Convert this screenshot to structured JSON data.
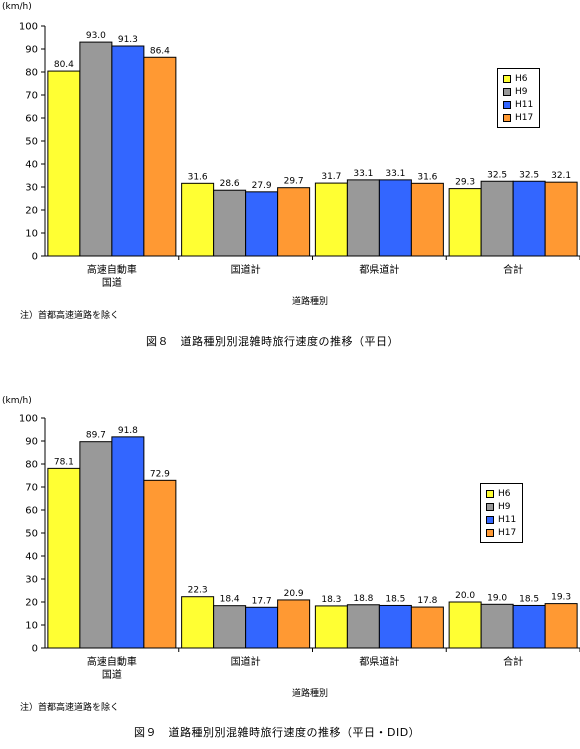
{
  "charts": [
    {
      "id": "fig1",
      "unit": "(km/h)",
      "caption": "図８　道路種別別混雑時旅行速度の推移（平日）",
      "note": "注）首都高速道路を除く",
      "legend": [
        "H6",
        "H9",
        "H11",
        "H17"
      ]
    },
    {
      "id": "fig2",
      "unit": "(km/h)",
      "caption": "図９　道路種別別混雑時旅行速度の推移（平日・DID）",
      "note": "注）首都高速道路を除く",
      "legend": [
        "H6",
        "H9",
        "H11",
        "H17"
      ]
    }
  ],
  "chart_data": [
    {
      "type": "bar",
      "title": "図８　道路種別別混雑時旅行速度の推移（平日）",
      "xlabel": "道路種別",
      "ylabel": "(km/h)",
      "ylim": [
        0,
        100
      ],
      "yticks": [
        0,
        10,
        20,
        30,
        40,
        50,
        60,
        70,
        80,
        90,
        100
      ],
      "categories": [
        "高速自動車\n国道",
        "国道計",
        "都県道計",
        "合計"
      ],
      "series": [
        {
          "name": "H6",
          "color": "#ffff33",
          "values": [
            80.4,
            31.6,
            31.7,
            29.3
          ]
        },
        {
          "name": "H9",
          "color": "#999999",
          "values": [
            93.0,
            28.6,
            33.1,
            32.5
          ]
        },
        {
          "name": "H11",
          "color": "#3366ff",
          "values": [
            91.3,
            27.9,
            33.1,
            32.5
          ]
        },
        {
          "name": "H17",
          "color": "#ff9933",
          "values": [
            86.4,
            29.7,
            31.6,
            32.1
          ]
        }
      ],
      "legend_position": "right",
      "grid": false
    },
    {
      "type": "bar",
      "title": "図９　道路種別別混雑時旅行速度の推移（平日・DID）",
      "xlabel": "道路種別",
      "ylabel": "(km/h)",
      "ylim": [
        0,
        100
      ],
      "yticks": [
        0,
        10,
        20,
        30,
        40,
        50,
        60,
        70,
        80,
        90,
        100
      ],
      "categories": [
        "高速自動車\n国道",
        "国道計",
        "都県道計",
        "合計"
      ],
      "series": [
        {
          "name": "H6",
          "color": "#ffff33",
          "values": [
            78.1,
            22.3,
            18.3,
            20.0
          ]
        },
        {
          "name": "H9",
          "color": "#999999",
          "values": [
            89.7,
            18.4,
            18.8,
            19.0
          ]
        },
        {
          "name": "H11",
          "color": "#3366ff",
          "values": [
            91.8,
            17.7,
            18.5,
            18.5
          ]
        },
        {
          "name": "H17",
          "color": "#ff9933",
          "values": [
            72.9,
            20.9,
            17.8,
            19.3
          ]
        }
      ],
      "legend_position": "right",
      "grid": false
    }
  ]
}
